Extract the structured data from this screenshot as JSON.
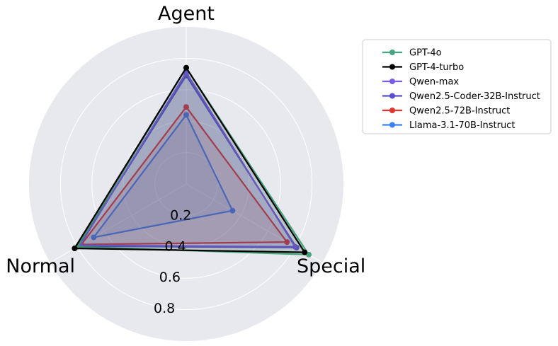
{
  "chart_data": {
    "type": "radar",
    "axes": [
      "Agent",
      "Special",
      "Normal"
    ],
    "rlim": [
      0,
      1
    ],
    "rticks": [
      0.2,
      0.4,
      0.6,
      0.8
    ],
    "rtick_labels": [
      "0.2",
      "0.4",
      "0.6",
      "0.8"
    ],
    "grid": true,
    "legend_position": "upper-right-outside",
    "background_color": "#e8e8ef",
    "series": [
      {
        "name": "GPT-4o",
        "color": "#4aa57f",
        "values": [
          0.74,
          0.9,
          0.8
        ]
      },
      {
        "name": "GPT-4-turbo",
        "color": "#000000",
        "values": [
          0.74,
          0.87,
          0.82
        ]
      },
      {
        "name": "Qwen-max",
        "color": "#7a5ce6",
        "values": [
          0.71,
          0.8,
          0.78
        ]
      },
      {
        "name": "Qwen2.5-Coder-32B-Instruct",
        "color": "#5850d0",
        "values": [
          0.69,
          0.81,
          0.79
        ]
      },
      {
        "name": "Qwen2.5-72B-Instruct",
        "color": "#e3342f",
        "values": [
          0.49,
          0.74,
          0.77
        ]
      },
      {
        "name": "Llama-3.1-70B-Instruct",
        "color": "#3b82f6",
        "values": [
          0.44,
          0.34,
          0.68
        ]
      }
    ]
  }
}
